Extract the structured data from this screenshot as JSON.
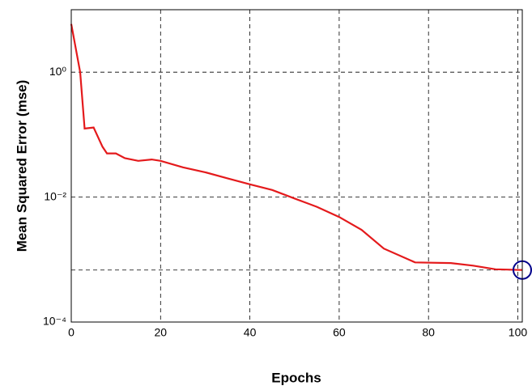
{
  "chart_data": {
    "type": "line",
    "xlabel": "Epochs",
    "ylabel": "Mean Squared Error  (mse)",
    "log_y": true,
    "grid": true,
    "xlim": [
      0,
      101
    ],
    "xticks": [
      0,
      20,
      40,
      60,
      80,
      100
    ],
    "ylim": [
      0.0001,
      10
    ],
    "yticks": [
      {
        "value": 1,
        "label": "10⁰"
      },
      {
        "value": 0.01,
        "label": "10⁻²"
      },
      {
        "value": 0.0001,
        "label": "10⁻⁴"
      }
    ],
    "series": [
      {
        "color": "#e41a1c",
        "x": [
          0,
          2,
          3,
          5,
          7,
          8,
          10,
          12,
          15,
          18,
          20,
          25,
          30,
          35,
          40,
          45,
          50,
          55,
          60,
          65,
          70,
          77,
          85,
          90,
          95,
          101
        ],
        "values": [
          5.9,
          1,
          0.125,
          0.13,
          0.064,
          0.05,
          0.05,
          0.042,
          0.038,
          0.04,
          0.038,
          0.03,
          0.025,
          0.02,
          0.016,
          0.013,
          0.0095,
          0.007,
          0.0048,
          0.003,
          0.0015,
          0.0009,
          0.00088,
          0.0008,
          0.0007,
          0.00068
        ]
      }
    ],
    "best": {
      "x": 101,
      "y": 0.00068,
      "color": "#00008b"
    }
  }
}
